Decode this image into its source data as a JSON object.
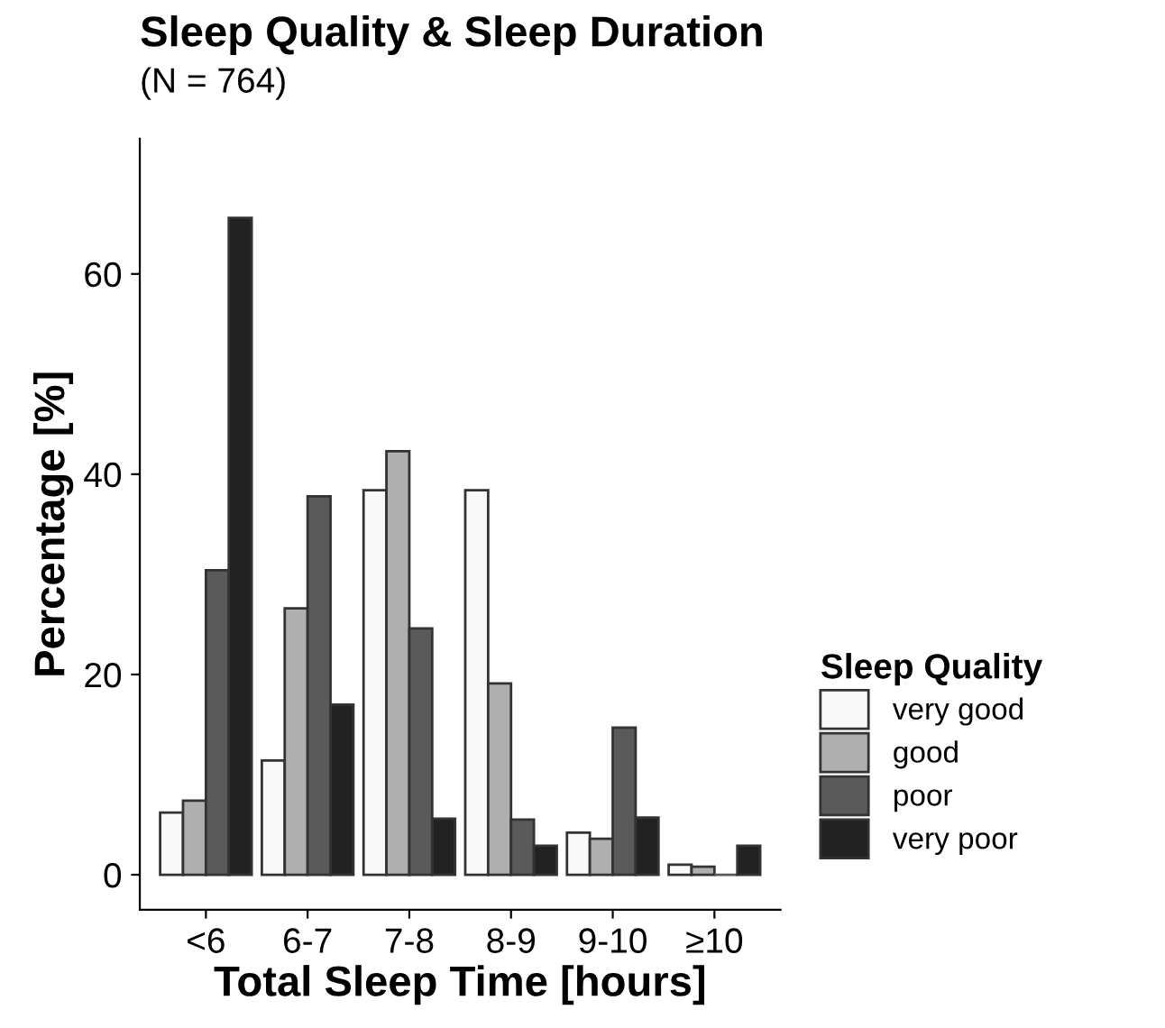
{
  "chart_data": {
    "type": "bar",
    "title": "Sleep Quality & Sleep Duration",
    "subtitle": "(N = 764)",
    "xlabel": "Total Sleep Time [hours]",
    "ylabel": "Percentage [%]",
    "legend_title": "Sleep Quality",
    "categories": [
      "<6",
      "6-7",
      "7-8",
      "8-9",
      "9-10",
      "≥10"
    ],
    "series": [
      {
        "name": "very good",
        "color": "#f9f9f9",
        "values": [
          6.2,
          11.4,
          38.4,
          38.4,
          4.2,
          1.0
        ]
      },
      {
        "name": "good",
        "color": "#afafaf",
        "values": [
          7.4,
          26.6,
          42.3,
          19.1,
          3.6,
          0.8
        ]
      },
      {
        "name": "poor",
        "color": "#5a5a5a",
        "values": [
          30.4,
          37.8,
          24.6,
          5.5,
          14.7,
          0
        ]
      },
      {
        "name": "very poor",
        "color": "#222222",
        "values": [
          65.6,
          17.0,
          5.6,
          2.9,
          5.7,
          2.9
        ]
      }
    ],
    "ylim": [
      -3.5,
      73.5
    ],
    "yticks": [
      0,
      20,
      40,
      60
    ],
    "grid": false,
    "legend": "right"
  }
}
